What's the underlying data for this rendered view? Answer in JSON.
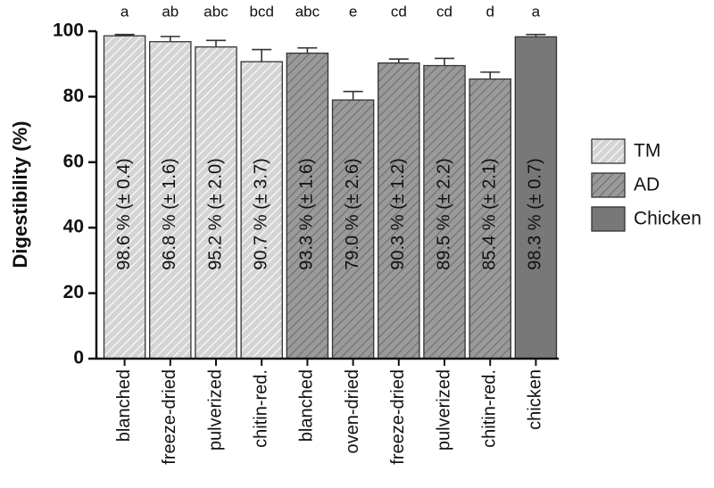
{
  "chart_data": {
    "type": "bar",
    "y_label": "Digestibility (%)",
    "categories": [
      "blanched",
      "freeze-dried",
      "pulverized",
      "chitin-red.",
      "blanched",
      "oven-dried",
      "freeze-dried",
      "pulverized",
      "chitin-red.",
      "chicken"
    ],
    "letters": [
      "a",
      "ab",
      "abc",
      "bcd",
      "abc",
      "e",
      "cd",
      "cd",
      "d",
      "a"
    ],
    "series": [
      {
        "name": "TM",
        "color": "#d4d4d4",
        "hatched": true,
        "values": [
          98.6,
          96.8,
          95.2,
          90.7,
          null,
          null,
          null,
          null,
          null,
          null
        ],
        "errors": [
          0.4,
          1.6,
          2.0,
          3.7,
          null,
          null,
          null,
          null,
          null,
          null
        ],
        "value_labels": [
          "98.6 % (± 0.4)",
          "96.8 % (± 1.6)",
          "95.2 % (± 2.0)",
          "90.7 % (± 3.7)",
          null,
          null,
          null,
          null,
          null,
          null
        ]
      },
      {
        "name": "AD",
        "color": "#9a9a9a",
        "hatched": true,
        "values": [
          null,
          null,
          null,
          null,
          93.3,
          79.0,
          90.3,
          89.5,
          85.4,
          null
        ],
        "errors": [
          null,
          null,
          null,
          null,
          1.6,
          2.6,
          1.2,
          2.2,
          2.1,
          null
        ],
        "value_labels": [
          null,
          null,
          null,
          null,
          "93.3 % (± 1.6)",
          "79.0 % (± 2.6)",
          "90.3 % (± 1.2)",
          "89.5 % (± 2.2)",
          "85.4 % (± 2.1)",
          null
        ]
      },
      {
        "name": "Chicken",
        "color": "#787878",
        "hatched": false,
        "values": [
          null,
          null,
          null,
          null,
          null,
          null,
          null,
          null,
          null,
          98.3
        ],
        "errors": [
          null,
          null,
          null,
          null,
          null,
          null,
          null,
          null,
          null,
          0.7
        ],
        "value_labels": [
          null,
          null,
          null,
          null,
          null,
          null,
          null,
          null,
          null,
          "98.3 % (± 0.7)"
        ]
      }
    ],
    "ylim": [
      0,
      100
    ],
    "yticks": [
      0,
      20,
      40,
      60,
      80,
      100
    ],
    "grid": false,
    "legend": "right"
  }
}
